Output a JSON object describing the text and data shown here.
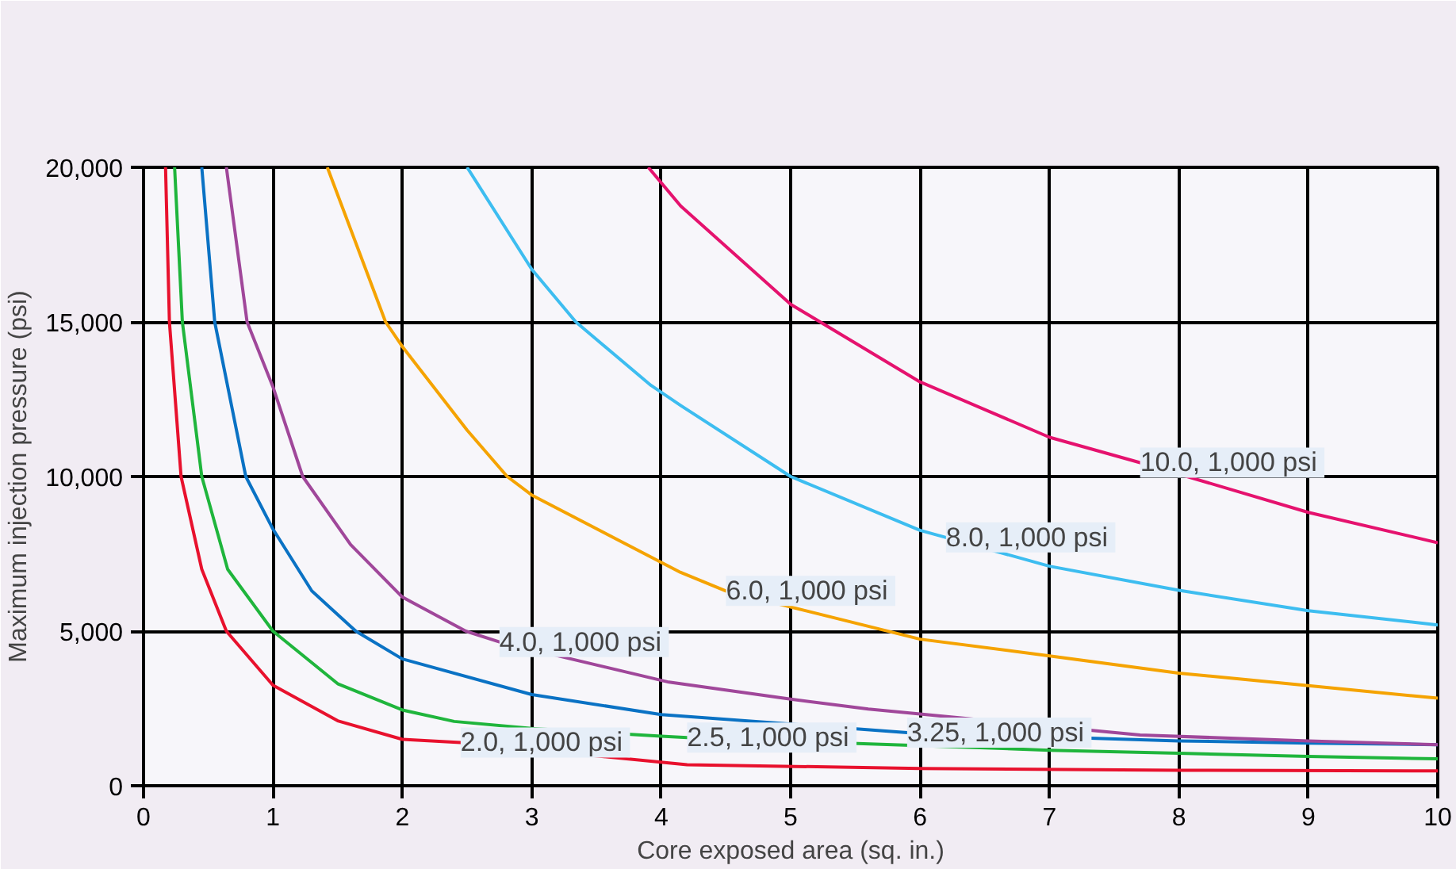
{
  "chart_data": {
    "type": "line",
    "xlabel": "Core exposed area (sq. in.)",
    "ylabel": "Maximum injection pressure (psi)",
    "xlim": [
      0,
      10
    ],
    "ylim": [
      0,
      20000
    ],
    "xticks": [
      0,
      1,
      2,
      3,
      4,
      5,
      6,
      7,
      8,
      9,
      10
    ],
    "yticks": [
      0,
      {
        "value": 5000,
        "label": "5,000"
      },
      {
        "value": 10000,
        "label": "10,000"
      },
      {
        "value": 15000,
        "label": "15,000"
      },
      {
        "value": 20000,
        "label": "20,000"
      }
    ],
    "grid": true,
    "marker": "none",
    "line_style": "solid",
    "series": [
      {
        "color": "#e8112d",
        "x": [
          0.17,
          0.2,
          0.29,
          0.45,
          0.64,
          1,
          1.5,
          2,
          2.45,
          4.2,
          6,
          8,
          10
        ],
        "values": [
          20000,
          15000,
          10000,
          7000,
          5000,
          3250,
          2100,
          1500,
          1400,
          680,
          560,
          500,
          480
        ]
      },
      {
        "color": "#1fb53c",
        "x": [
          0.24,
          0.3,
          0.45,
          0.65,
          1,
          1.5,
          2,
          2.4,
          3,
          4,
          4.2,
          7,
          8,
          9,
          10
        ],
        "values": [
          20000,
          15000,
          10000,
          7000,
          5000,
          3300,
          2450,
          2080,
          1850,
          1600,
          1560,
          1150,
          1050,
          950,
          870
        ]
      },
      {
        "color": "#0a72c4",
        "x": [
          0.45,
          0.55,
          0.79,
          1,
          1.3,
          1.64,
          2,
          3,
          4,
          5.9,
          8,
          9,
          10
        ],
        "values": [
          20000,
          15000,
          10000,
          8300,
          6300,
          5000,
          4100,
          2950,
          2300,
          1720,
          1450,
          1380,
          1330
        ]
      },
      {
        "color": "#a0479a",
        "x": [
          0.64,
          0.8,
          1,
          1.23,
          1.6,
          2,
          2.49,
          2.75,
          4.06,
          5,
          5.6,
          7.7,
          9,
          10
        ],
        "values": [
          20000,
          15000,
          12900,
          10000,
          7800,
          6100,
          5000,
          4650,
          3350,
          2800,
          2480,
          1640,
          1450,
          1330
        ]
      },
      {
        "color": "#f5a300",
        "x": [
          1.42,
          1.87,
          2,
          2.5,
          2.81,
          3,
          3.92,
          4.15,
          4.5,
          6,
          7,
          8,
          9,
          10
        ],
        "values": [
          20000,
          15000,
          14200,
          11500,
          10000,
          9400,
          7400,
          6900,
          6300,
          4740,
          4200,
          3640,
          3240,
          2830
        ]
      },
      {
        "color": "#3dbdf0",
        "x": [
          2.5,
          3,
          3.34,
          3.92,
          4.15,
          5,
          6,
          6.2,
          7,
          8,
          9,
          10
        ],
        "values": [
          20000,
          16700,
          15000,
          12950,
          12300,
          10000,
          8260,
          8030,
          7100,
          6320,
          5660,
          5200
        ]
      },
      {
        "color": "#e5126e",
        "x": [
          3.9,
          4.15,
          5,
          6,
          7,
          7.7,
          9,
          10
        ],
        "values": [
          20000,
          18750,
          15570,
          13060,
          11270,
          10450,
          8840,
          7860
        ]
      }
    ],
    "annotations": [
      {
        "text": "2.0,  1,000 psi",
        "x": 2.45,
        "y": 1400
      },
      {
        "text": "2.5,  1,000 psi",
        "x": 4.2,
        "y": 1560
      },
      {
        "text": "3.25,  1,000 psi",
        "x": 5.9,
        "y": 1720
      },
      {
        "text": "4.0,  1,000 psi",
        "x": 2.75,
        "y": 4650
      },
      {
        "text": "6.0,  1,000 psi",
        "x": 4.5,
        "y": 6300
      },
      {
        "text": "8.0,  1,000 psi",
        "x": 6.2,
        "y": 8030
      },
      {
        "text": "10.0,  1,000 psi",
        "x": 7.7,
        "y": 10450
      }
    ]
  }
}
